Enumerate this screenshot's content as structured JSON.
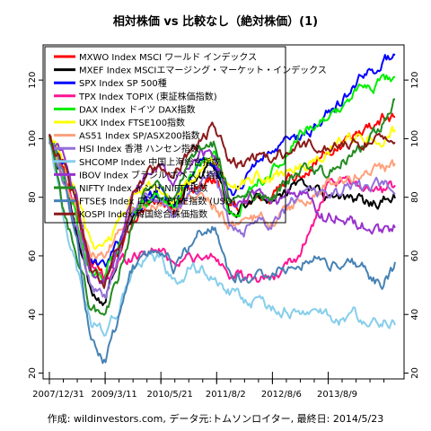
{
  "chart_data": {
    "type": "line",
    "title": "相対株価 vs 比較なし（絶対株価）(1)",
    "caption": "作成: wildinvestors.com, データ元:トムソンロイター, 最終日: 2014/5/23",
    "ylim": [
      18,
      132
    ],
    "y_ticks": [
      20,
      40,
      60,
      80,
      100,
      120
    ],
    "x_tick_labels": [
      "2007/12/31",
      "2009/3/11",
      "2010/5/21",
      "2011/8/2",
      "2012/8/6",
      "2013/8/9"
    ],
    "legend_position": "top-left",
    "series": [
      {
        "name": "MXWO Index MSCI ワールド インデックス",
        "color": "#ff0000",
        "values": [
          100,
          90,
          75,
          58,
          53,
          63,
          72,
          77,
          79,
          74,
          83,
          85,
          86,
          76,
          78,
          82,
          79,
          84,
          88,
          91,
          95,
          97,
          101,
          104,
          107,
          108
        ]
      },
      {
        "name": "MXEF Index MSCIエマージング・マーケット・インデックス",
        "color": "#000000",
        "values": [
          100,
          88,
          66,
          47,
          45,
          60,
          73,
          80,
          82,
          76,
          85,
          89,
          90,
          75,
          76,
          80,
          78,
          82,
          85,
          84,
          79,
          80,
          79,
          78,
          79,
          80
        ]
      },
      {
        "name": "SPX Index SP 500種",
        "color": "#0000ff",
        "values": [
          100,
          92,
          78,
          58,
          55,
          65,
          75,
          78,
          82,
          76,
          86,
          90,
          92,
          80,
          85,
          92,
          95,
          98,
          100,
          103,
          108,
          112,
          118,
          122,
          126,
          129
        ]
      },
      {
        "name": "TPX Index TOPIX (東証株価指数)",
        "color": "#ff1493",
        "values": [
          100,
          88,
          75,
          56,
          52,
          58,
          60,
          62,
          62,
          58,
          60,
          58,
          60,
          55,
          52,
          52,
          53,
          55,
          60,
          70,
          82,
          84,
          86,
          84,
          82,
          83
        ]
      },
      {
        "name": "DAX Index ドイツ DAX指数",
        "color": "#00ee00",
        "values": [
          100,
          88,
          72,
          55,
          53,
          63,
          75,
          78,
          80,
          77,
          87,
          92,
          95,
          75,
          78,
          86,
          88,
          93,
          100,
          104,
          108,
          110,
          115,
          118,
          119,
          121
        ]
      },
      {
        "name": "UKX Index FTSE100指数",
        "color": "#ffff00",
        "values": [
          100,
          92,
          80,
          65,
          62,
          72,
          80,
          83,
          84,
          80,
          86,
          90,
          92,
          83,
          85,
          88,
          86,
          88,
          91,
          92,
          95,
          99,
          100,
          101,
          100,
          103
        ]
      },
      {
        "name": "AS51 Index SP/ASX200指数",
        "color": "#ffa07a",
        "values": [
          100,
          88,
          78,
          62,
          58,
          68,
          76,
          78,
          79,
          74,
          78,
          80,
          78,
          70,
          70,
          73,
          72,
          75,
          78,
          80,
          84,
          86,
          88,
          89,
          90,
          91
        ]
      },
      {
        "name": "HSI Index 香港 ハンセン指数",
        "color": "#9370db",
        "values": [
          100,
          84,
          70,
          50,
          45,
          58,
          75,
          80,
          80,
          73,
          80,
          85,
          88,
          70,
          68,
          73,
          72,
          76,
          80,
          84,
          80,
          82,
          85,
          82,
          84,
          84
        ]
      },
      {
        "name": "SHCOMP Index 中国上海総合指数",
        "color": "#87ceeb",
        "values": [
          100,
          75,
          55,
          37,
          34,
          42,
          55,
          58,
          60,
          50,
          55,
          55,
          52,
          48,
          45,
          44,
          43,
          42,
          40,
          42,
          40,
          38,
          40,
          38,
          38,
          38
        ]
      },
      {
        "name": "IBOV Index ブラジル ボベスパ指数",
        "color": "#9932cc",
        "values": [
          100,
          95,
          80,
          55,
          50,
          62,
          80,
          88,
          90,
          84,
          90,
          95,
          93,
          80,
          78,
          80,
          78,
          80,
          82,
          78,
          72,
          75,
          72,
          70,
          68,
          70
        ]
      },
      {
        "name": "NIFTY Index インド NIFTY指数",
        "color": "#228b22",
        "values": [
          100,
          75,
          60,
          42,
          40,
          52,
          72,
          82,
          84,
          78,
          90,
          96,
          98,
          80,
          78,
          82,
          80,
          84,
          88,
          90,
          88,
          92,
          96,
          98,
          105,
          114
        ]
      },
      {
        "name": "FTSE$ Index ロシア FTSE指数 (USD)",
        "color": "#4682b4",
        "values": [
          100,
          88,
          65,
          30,
          24,
          38,
          55,
          60,
          62,
          56,
          62,
          68,
          70,
          55,
          52,
          55,
          54,
          56,
          58,
          60,
          58,
          56,
          58,
          54,
          50,
          57
        ]
      },
      {
        "name": "KOSPI Index 韓国総合株価指数",
        "color": "#8b1a1a",
        "values": [
          100,
          92,
          78,
          55,
          50,
          62,
          80,
          88,
          90,
          85,
          95,
          100,
          104,
          92,
          90,
          94,
          92,
          95,
          97,
          98,
          96,
          97,
          98,
          99,
          101,
          102
        ]
      }
    ]
  }
}
